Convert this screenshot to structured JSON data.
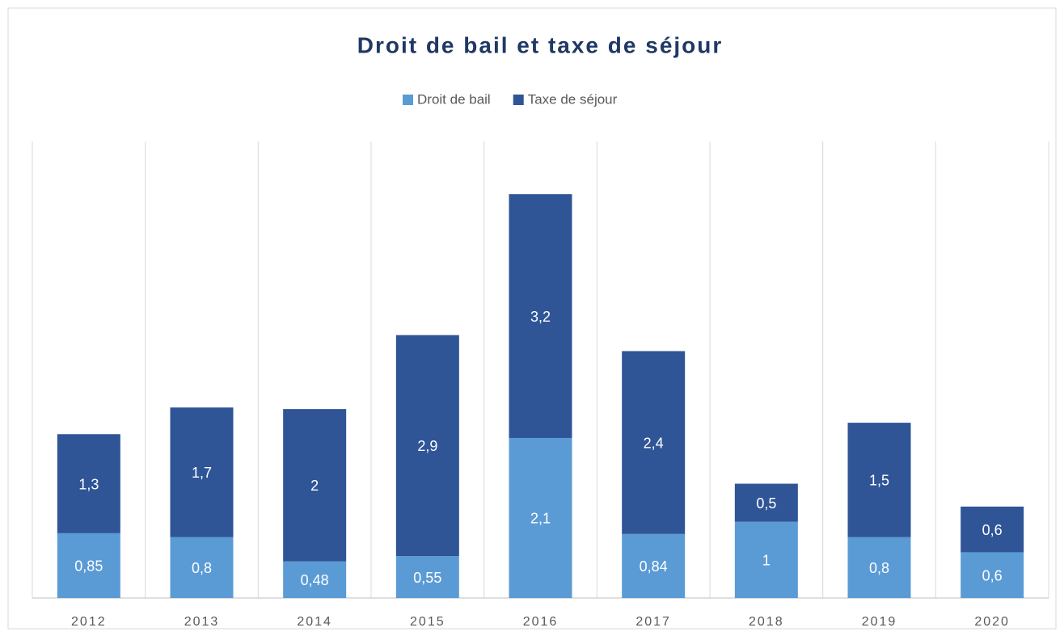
{
  "chart_data": {
    "type": "stacked_bar",
    "title": "Droit de bail et taxe de séjour",
    "categories": [
      "2012",
      "2013",
      "2014",
      "2015",
      "2016",
      "2017",
      "2018",
      "2019",
      "2020"
    ],
    "series": [
      {
        "name": "Droit de bail",
        "color": "#5b9bd5",
        "values": [
          0.85,
          0.8,
          0.48,
          0.55,
          2.1,
          0.84,
          1,
          0.8,
          0.6
        ],
        "value_labels": [
          "0,85",
          "0,8",
          "0,48",
          "0,55",
          "2,1",
          "0,84",
          "1",
          "0,8",
          "0,6"
        ]
      },
      {
        "name": "Taxe de séjour",
        "color": "#2f5597",
        "values": [
          1.3,
          1.7,
          2,
          2.9,
          3.2,
          2.4,
          0.5,
          1.5,
          0.6
        ],
        "value_labels": [
          "1,3",
          "1,7",
          "2",
          "2,9",
          "3,2",
          "2,4",
          "0,5",
          "1,5",
          "0,6"
        ]
      }
    ],
    "legend": "top",
    "grid": true
  }
}
